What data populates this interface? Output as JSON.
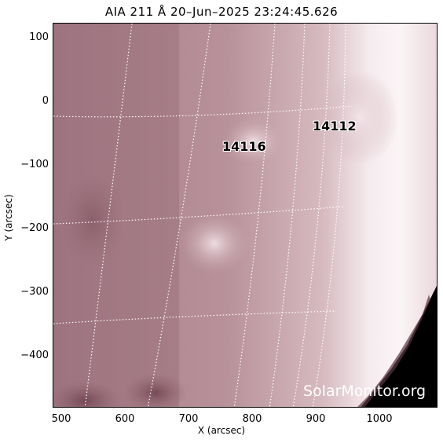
{
  "title": "AIA 211 Å 20–Jun–2025 23:24:45.626",
  "axes": {
    "xlabel": "X (arcsec)",
    "ylabel": "Y (arcsec)",
    "xticks": [
      "500",
      "600",
      "700",
      "800",
      "900",
      "1000"
    ],
    "yticks": [
      "100",
      "0",
      "−100",
      "−200",
      "−300",
      "−400"
    ]
  },
  "regions": [
    {
      "id": "14116",
      "label": "14116"
    },
    {
      "id": "14112",
      "label": "14112"
    }
  ],
  "watermark": "SolarMonitor.org",
  "colors": {
    "disk": "#b48e97",
    "limb_bright": "#f7eef0",
    "space": "#000000"
  }
}
